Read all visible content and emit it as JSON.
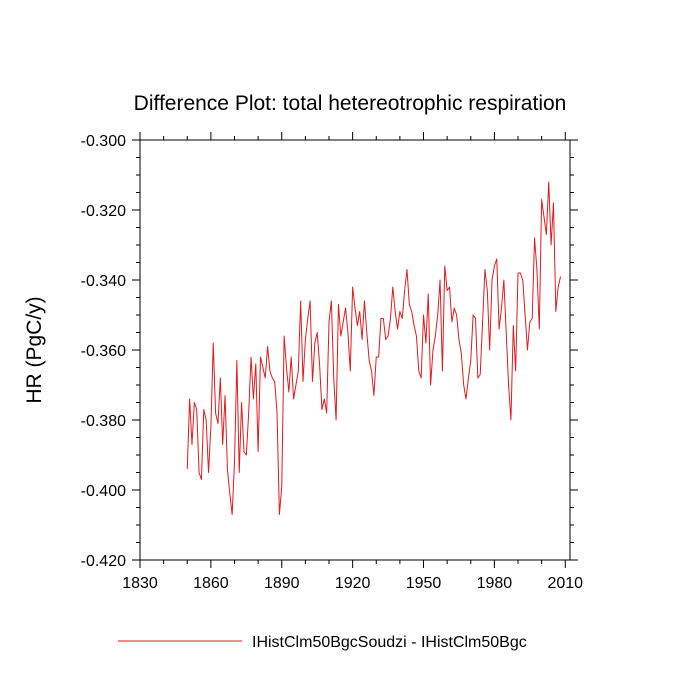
{
  "chart_data": {
    "type": "line",
    "title": "Difference Plot: total hetereotrophic respiration",
    "xlabel": "",
    "ylabel": "HR  (PgC/y)",
    "xlim": [
      1830,
      2012
    ],
    "ylim": [
      -0.42,
      -0.3
    ],
    "x_ticks": [
      1830,
      1860,
      1890,
      1920,
      1950,
      1980,
      2010
    ],
    "y_ticks": [
      -0.3,
      -0.32,
      -0.34,
      -0.36,
      -0.38,
      -0.4,
      -0.42
    ],
    "x_tick_labels": [
      "1830",
      "1860",
      "1890",
      "1920",
      "1950",
      "1980",
      "2010"
    ],
    "y_tick_labels": [
      "-0.300",
      "-0.320",
      "-0.340",
      "-0.360",
      "-0.380",
      "-0.400",
      "-0.420"
    ],
    "grid": false,
    "legend_position": "bottom",
    "series": [
      {
        "name": "IHistClm50BgcSoudzi - IHistClm50Bgc",
        "color": "#e31a1c",
        "x_start": 1850,
        "x_step": 1,
        "values": [
          -0.394,
          -0.374,
          -0.387,
          -0.375,
          -0.377,
          -0.395,
          -0.397,
          -0.377,
          -0.38,
          -0.395,
          -0.382,
          -0.358,
          -0.378,
          -0.381,
          -0.368,
          -0.387,
          -0.373,
          -0.394,
          -0.401,
          -0.407,
          -0.392,
          -0.363,
          -0.395,
          -0.375,
          -0.389,
          -0.39,
          -0.378,
          -0.362,
          -0.374,
          -0.364,
          -0.389,
          -0.362,
          -0.365,
          -0.368,
          -0.359,
          -0.366,
          -0.368,
          -0.369,
          -0.378,
          -0.407,
          -0.399,
          -0.356,
          -0.365,
          -0.372,
          -0.362,
          -0.374,
          -0.37,
          -0.366,
          -0.346,
          -0.369,
          -0.357,
          -0.351,
          -0.346,
          -0.369,
          -0.358,
          -0.355,
          -0.364,
          -0.377,
          -0.374,
          -0.378,
          -0.352,
          -0.346,
          -0.368,
          -0.38,
          -0.347,
          -0.356,
          -0.352,
          -0.348,
          -0.355,
          -0.366,
          -0.342,
          -0.348,
          -0.353,
          -0.349,
          -0.357,
          -0.346,
          -0.355,
          -0.363,
          -0.366,
          -0.373,
          -0.362,
          -0.362,
          -0.351,
          -0.351,
          -0.357,
          -0.356,
          -0.351,
          -0.342,
          -0.349,
          -0.354,
          -0.349,
          -0.351,
          -0.343,
          -0.337,
          -0.347,
          -0.349,
          -0.353,
          -0.356,
          -0.366,
          -0.368,
          -0.35,
          -0.358,
          -0.344,
          -0.37,
          -0.36,
          -0.356,
          -0.35,
          -0.34,
          -0.366,
          -0.336,
          -0.343,
          -0.342,
          -0.352,
          -0.348,
          -0.35,
          -0.357,
          -0.361,
          -0.37,
          -0.374,
          -0.368,
          -0.363,
          -0.35,
          -0.351,
          -0.368,
          -0.367,
          -0.352,
          -0.337,
          -0.343,
          -0.36,
          -0.34,
          -0.336,
          -0.334,
          -0.354,
          -0.348,
          -0.34,
          -0.355,
          -0.37,
          -0.38,
          -0.353,
          -0.366,
          -0.338,
          -0.338,
          -0.34,
          -0.35,
          -0.36,
          -0.352,
          -0.351,
          -0.328,
          -0.337,
          -0.354,
          -0.317,
          -0.322,
          -0.327,
          -0.312,
          -0.33,
          -0.318,
          -0.349,
          -0.342,
          -0.339
        ]
      }
    ]
  }
}
